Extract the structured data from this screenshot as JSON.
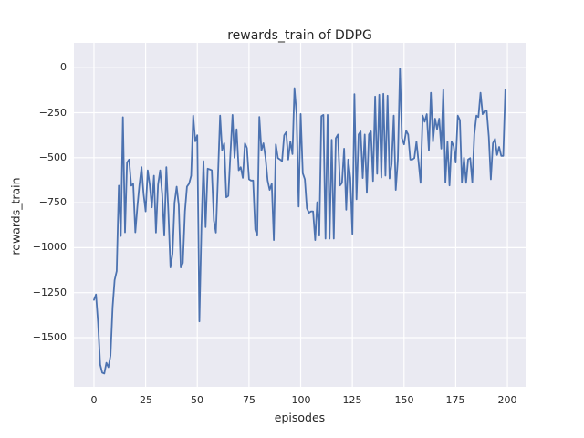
{
  "figure": {
    "title": "rewards_train of DDPG",
    "xlabel": "episodes",
    "ylabel": "rewards_train"
  },
  "chart_data": {
    "type": "line",
    "title": "rewards_train of DDPG",
    "xlabel": "episodes",
    "ylabel": "rewards_train",
    "x_is_index": true,
    "x_range": [
      0,
      199
    ],
    "xlim": [
      -9.7,
      208.8
    ],
    "ylim": [
      -1774,
      138
    ],
    "xticks": [
      0,
      25,
      50,
      75,
      100,
      125,
      150,
      175,
      200
    ],
    "yticks": [
      0,
      -250,
      -500,
      -750,
      -1000,
      -1250,
      -1500
    ],
    "grid": true,
    "legend": "none",
    "style": {
      "figure_bg": "#ffffff",
      "axes_bg": "#eaeaf2",
      "grid_color": "#ffffff",
      "text_color": "#262626",
      "line_color": "#4c72b0",
      "line_width": 1.8
    },
    "series": [
      {
        "name": "rewards_train",
        "color": "#4c72b0",
        "values": [
          -1290,
          -1260,
          -1420,
          -1650,
          -1695,
          -1700,
          -1640,
          -1665,
          -1600,
          -1330,
          -1180,
          -1130,
          -655,
          -935,
          -275,
          -915,
          -527,
          -510,
          -655,
          -646,
          -915,
          -775,
          -650,
          -553,
          -700,
          -798,
          -570,
          -650,
          -776,
          -600,
          -916,
          -650,
          -570,
          -700,
          -933,
          -553,
          -800,
          -1110,
          -1033,
          -750,
          -661,
          -763,
          -1110,
          -1085,
          -797,
          -661,
          -644,
          -600,
          -266,
          -409,
          -375,
          -1410,
          -879,
          -519,
          -886,
          -561,
          -565,
          -570,
          -849,
          -916,
          -600,
          -266,
          -460,
          -420,
          -720,
          -712,
          -480,
          -262,
          -500,
          -342,
          -570,
          -553,
          -612,
          -420,
          -446,
          -620,
          -627,
          -627,
          -899,
          -933,
          -274,
          -460,
          -420,
          -500,
          -627,
          -679,
          -645,
          -958,
          -426,
          -502,
          -510,
          -519,
          -375,
          -358,
          -510,
          -409,
          -480,
          -113,
          -257,
          -772,
          -257,
          -586,
          -620,
          -781,
          -806,
          -798,
          -798,
          -958,
          -747,
          -933,
          -269,
          -262,
          -950,
          -262,
          -950,
          -400,
          -950,
          -392,
          -371,
          -654,
          -640,
          -450,
          -789,
          -510,
          -613,
          -924,
          -147,
          -731,
          -371,
          -354,
          -613,
          -371,
          -696,
          -371,
          -354,
          -630,
          -160,
          -590,
          -150,
          -610,
          -145,
          -600,
          -155,
          -615,
          -535,
          -266,
          -679,
          -510,
          -5,
          -392,
          -426,
          -350,
          -371,
          -510,
          -510,
          -502,
          -410,
          -519,
          -640,
          -266,
          -300,
          -258,
          -460,
          -139,
          -410,
          -283,
          -342,
          -283,
          -450,
          -122,
          -637,
          -410,
          -654,
          -410,
          -436,
          -527,
          -266,
          -291,
          -637,
          -500,
          -640,
          -510,
          -502,
          -637,
          -371,
          -266,
          -274,
          -139,
          -258,
          -241,
          -240,
          -385,
          -620,
          -420,
          -395,
          -485,
          -440,
          -490,
          -490,
          -120
        ]
      }
    ]
  }
}
